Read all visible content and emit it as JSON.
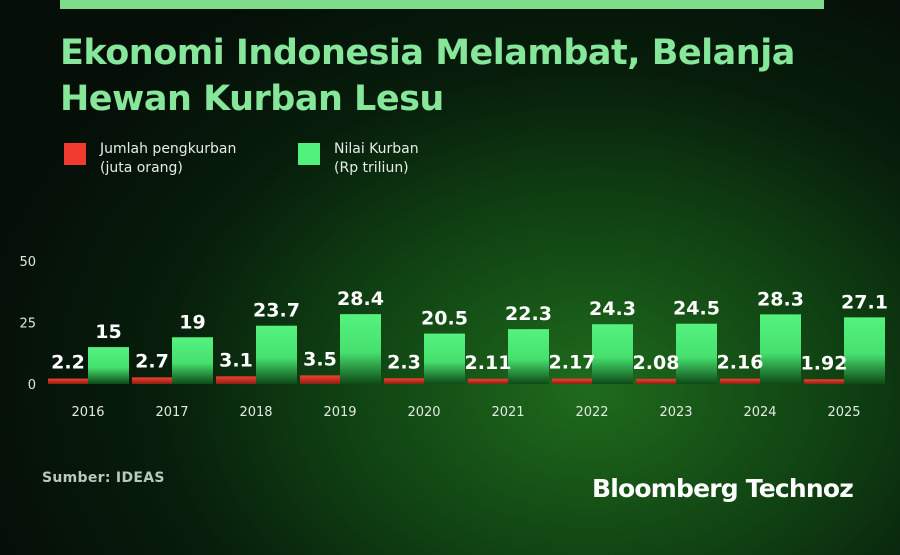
{
  "header": {
    "title_line1": "Ekonomi Indonesia Melambat, Belanja",
    "title_line2": "Hewan Kurban Lesu"
  },
  "legend": [
    {
      "line1": "Jumlah pengkurban",
      "line2": "(juta orang)",
      "color": "#f03a30"
    },
    {
      "line1": "Nilai Kurban",
      "line2": "(Rp triliun)",
      "color": "#52f07c"
    }
  ],
  "chart_data": {
    "type": "bar",
    "categories": [
      "2016",
      "2017",
      "2018",
      "2019",
      "2020",
      "2021",
      "2022",
      "2023",
      "2024",
      "2025"
    ],
    "series": [
      {
        "name": "Jumlah pengkurban (juta orang)",
        "values": [
          2.2,
          2.7,
          3.1,
          3.5,
          2.3,
          2.11,
          2.17,
          2.08,
          2.16,
          1.92
        ],
        "color": "#f03a30"
      },
      {
        "name": "Nilai Kurban (Rp triliun)",
        "values": [
          15,
          19,
          23.7,
          28.4,
          20.5,
          22.3,
          24.3,
          24.5,
          28.3,
          27.1
        ],
        "color": "#52f07c"
      }
    ],
    "yticks": [
      0,
      25,
      50
    ],
    "ylim": [
      0,
      50
    ],
    "grid": false
  },
  "footer": {
    "source": "Sumber: IDEAS",
    "brand": "Bloomberg Technoz"
  }
}
